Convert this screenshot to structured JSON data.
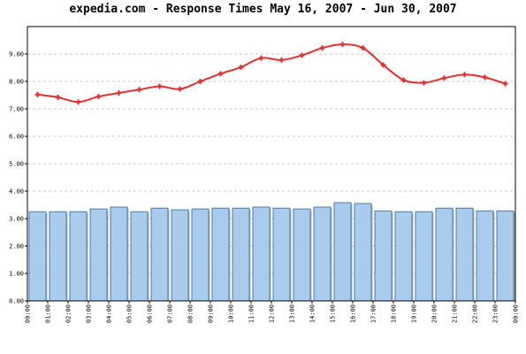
{
  "chart_data": {
    "type": "bar",
    "title": "expedia.com - Response Times May 16, 2007 - Jun 30, 2007",
    "xlabel": "",
    "ylabel": "",
    "ylim": [
      0,
      10
    ],
    "yticks": [
      "0.00",
      "1.00",
      "2.00",
      "3.00",
      "4.00",
      "5.00",
      "6.00",
      "7.00",
      "8.00",
      "9.00"
    ],
    "ytick_values": [
      0,
      1,
      2,
      3,
      4,
      5,
      6,
      7,
      8,
      9
    ],
    "xticks": [
      "00:00",
      "01:00",
      "02:00",
      "03:00",
      "04:00",
      "05:00",
      "06:00",
      "07:00",
      "08:00",
      "09:00",
      "10:00",
      "11:00",
      "12:00",
      "13:00",
      "14:00",
      "15:00",
      "16:00",
      "17:00",
      "18:00",
      "19:00",
      "20:00",
      "21:00",
      "22:00",
      "23:00",
      "00:00"
    ],
    "categories": [
      "00:00",
      "01:00",
      "02:00",
      "03:00",
      "04:00",
      "05:00",
      "06:00",
      "07:00",
      "08:00",
      "09:00",
      "10:00",
      "11:00",
      "12:00",
      "13:00",
      "14:00",
      "15:00",
      "16:00",
      "17:00",
      "18:00",
      "19:00",
      "20:00",
      "21:00",
      "22:00",
      "23:00"
    ],
    "grid": true,
    "series": [
      {
        "type": "bar",
        "color": "#a9cbed",
        "edge_color": "#4f7aa0",
        "values": [
          3.25,
          3.25,
          3.25,
          3.35,
          3.42,
          3.25,
          3.38,
          3.32,
          3.35,
          3.38,
          3.38,
          3.42,
          3.38,
          3.35,
          3.42,
          3.58,
          3.55,
          3.28,
          3.25,
          3.25,
          3.38,
          3.38,
          3.28,
          3.28
        ]
      },
      {
        "type": "line",
        "color": "#e03030",
        "values": [
          7.52,
          7.42,
          7.25,
          7.45,
          7.58,
          7.7,
          7.82,
          7.72,
          8.0,
          8.28,
          8.52,
          8.85,
          8.78,
          8.95,
          9.22,
          9.35,
          9.22,
          8.6,
          8.05,
          7.95,
          8.12,
          8.25,
          8.15,
          7.92
        ]
      }
    ]
  }
}
